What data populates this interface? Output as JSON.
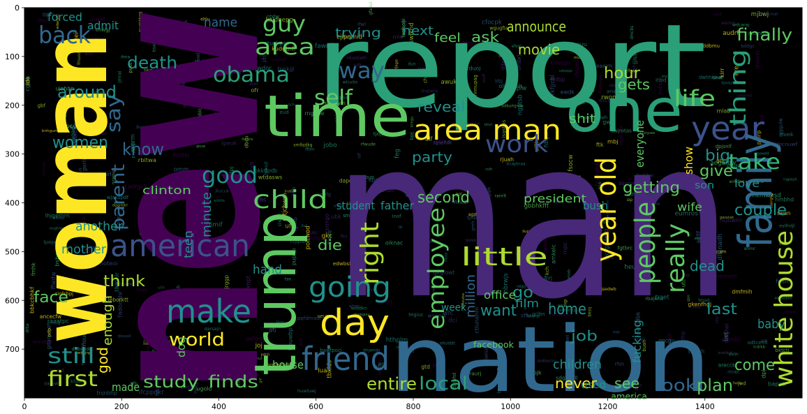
{
  "figure": {
    "type": "wordcloud-image-plot",
    "background": "#000000",
    "frame_color": "#000000",
    "x_ticks": [
      "0",
      "200",
      "400",
      "600",
      "800",
      "1000",
      "1200",
      "1400"
    ],
    "y_ticks": [
      "0",
      "100",
      "200",
      "300",
      "400",
      "500",
      "600",
      "700"
    ],
    "xlim": [
      0,
      1600
    ],
    "ylim": [
      800,
      0
    ],
    "palette": [
      "#440154",
      "#3b528b",
      "#21918c",
      "#2a9f78",
      "#5ec962",
      "#addc30",
      "#fde725",
      "#482878",
      "#31688e",
      "#35b779"
    ]
  },
  "words": [
    {
      "text": "new",
      "color": "#440154"
    },
    {
      "text": "report",
      "color": "#2a9f78"
    },
    {
      "text": "man",
      "color": "#482878"
    },
    {
      "text": "woman",
      "color": "#fde725"
    },
    {
      "text": "nation",
      "color": "#31688e"
    },
    {
      "text": "trump",
      "color": "#5ec962"
    },
    {
      "text": "time",
      "color": "#5ec962"
    },
    {
      "text": "one",
      "color": "#2a9f78"
    },
    {
      "text": "year",
      "color": "#3b528b"
    },
    {
      "text": "area man",
      "color": "#fde725"
    },
    {
      "text": "family",
      "color": "#31688e"
    },
    {
      "text": "white house",
      "color": "#addc30"
    },
    {
      "text": "day",
      "color": "#fde725"
    },
    {
      "text": "friend",
      "color": "#31688e"
    },
    {
      "text": "make",
      "color": "#21918c"
    },
    {
      "text": "going",
      "color": "#21918c"
    },
    {
      "text": "american",
      "color": "#3b528b"
    },
    {
      "text": "year old",
      "color": "#fde725"
    },
    {
      "text": "people",
      "color": "#5ec962"
    },
    {
      "text": "really",
      "color": "#5ec962"
    },
    {
      "text": "employee",
      "color": "#5ec962"
    },
    {
      "text": "right",
      "color": "#addc30"
    },
    {
      "text": "little",
      "color": "#addc30"
    },
    {
      "text": "child",
      "color": "#5ec962"
    },
    {
      "text": "good",
      "color": "#21918c"
    },
    {
      "text": "work",
      "color": "#3b528b"
    },
    {
      "text": "obama",
      "color": "#2a9f78"
    },
    {
      "text": "area",
      "color": "#5ec962"
    },
    {
      "text": "guy",
      "color": "#5ec962"
    },
    {
      "text": "back",
      "color": "#31688e"
    },
    {
      "text": "way",
      "color": "#31688e"
    },
    {
      "text": "life",
      "color": "#5ec962"
    },
    {
      "text": "thing",
      "color": "#2a9f78"
    },
    {
      "text": "take",
      "color": "#35b779"
    },
    {
      "text": "self",
      "color": "#5ec962"
    },
    {
      "text": "say",
      "color": "#31688e"
    },
    {
      "text": "still",
      "color": "#21918c"
    },
    {
      "text": "first",
      "color": "#addc30"
    },
    {
      "text": "world",
      "color": "#fde725"
    },
    {
      "text": "study",
      "color": "#5ec962"
    },
    {
      "text": "finds",
      "color": "#5ec962"
    },
    {
      "text": "local",
      "color": "#2a9f78"
    },
    {
      "text": "entire",
      "color": "#addc30"
    },
    {
      "text": "never",
      "color": "#fde725"
    },
    {
      "text": "see",
      "color": "#5ec962"
    },
    {
      "text": "look",
      "color": "#31688e"
    },
    {
      "text": "plan",
      "color": "#5ec962"
    },
    {
      "text": "come",
      "color": "#5ec962"
    },
    {
      "text": "know",
      "color": "#31688e"
    },
    {
      "text": "parent",
      "color": "#31688e"
    },
    {
      "text": "death",
      "color": "#21918c"
    },
    {
      "text": "around",
      "color": "#21918c"
    },
    {
      "text": "women",
      "color": "#21918c"
    },
    {
      "text": "finally",
      "color": "#5ec962"
    },
    {
      "text": "announce",
      "color": "#addc30"
    },
    {
      "text": "movie",
      "color": "#addc30"
    },
    {
      "text": "hour",
      "color": "#addc30"
    },
    {
      "text": "gets",
      "color": "#5ec962"
    },
    {
      "text": "party",
      "color": "#21918c"
    },
    {
      "text": "reveal",
      "color": "#21918c"
    },
    {
      "text": "give",
      "color": "#5ec962"
    },
    {
      "text": "big",
      "color": "#21918c"
    },
    {
      "text": "couple",
      "color": "#21918c"
    },
    {
      "text": "getting",
      "color": "#5ec962"
    },
    {
      "text": "second",
      "color": "#5ec962"
    },
    {
      "text": "clinton",
      "color": "#5ec962"
    },
    {
      "text": "think",
      "color": "#addc30"
    },
    {
      "text": "face",
      "color": "#5ec962"
    },
    {
      "text": "enough",
      "color": "#addc30"
    },
    {
      "text": "god",
      "color": "#fde725"
    },
    {
      "text": "made",
      "color": "#5ec962"
    },
    {
      "text": "mother",
      "color": "#21918c"
    },
    {
      "text": "another",
      "color": "#21918c"
    },
    {
      "text": "home",
      "color": "#21918c"
    },
    {
      "text": "want",
      "color": "#21918c"
    },
    {
      "text": "children",
      "color": "#21918c"
    },
    {
      "text": "dead",
      "color": "#21918c"
    },
    {
      "text": "last",
      "color": "#21918c"
    },
    {
      "text": "president",
      "color": "#5ec962"
    },
    {
      "text": "ask",
      "color": "#5ec962"
    },
    {
      "text": "next",
      "color": "#21918c"
    },
    {
      "text": "trying",
      "color": "#21918c"
    },
    {
      "text": "feel",
      "color": "#5ec962"
    },
    {
      "text": "name",
      "color": "#31688e"
    },
    {
      "text": "admit",
      "color": "#21918c"
    },
    {
      "text": "forced",
      "color": "#21918c"
    },
    {
      "text": "shit",
      "color": "#5ec962"
    },
    {
      "text": "everyone",
      "color": "#5ec962"
    },
    {
      "text": "show",
      "color": "#fde725"
    },
    {
      "text": "go",
      "color": "#21918c"
    },
    {
      "text": "office",
      "color": "#5ec962"
    },
    {
      "text": "house",
      "color": "#5ec962"
    },
    {
      "text": "dog",
      "color": "#5ec962"
    },
    {
      "text": "hand",
      "color": "#21918c"
    },
    {
      "text": "teen",
      "color": "#21918c"
    },
    {
      "text": "minute",
      "color": "#21918c"
    },
    {
      "text": "die",
      "color": "#5ec962"
    },
    {
      "text": "mom",
      "color": "#31688e"
    },
    {
      "text": "week",
      "color": "#21918c"
    },
    {
      "text": "wife",
      "color": "#5ec962"
    },
    {
      "text": "bush",
      "color": "#21918c"
    },
    {
      "text": "son",
      "color": "#21918c"
    },
    {
      "text": "love",
      "color": "#21918c"
    },
    {
      "text": "student",
      "color": "#21918c"
    },
    {
      "text": "father",
      "color": "#21918c"
    },
    {
      "text": "fucking",
      "color": "#21918c"
    },
    {
      "text": "baby",
      "color": "#21918c"
    },
    {
      "text": "million",
      "color": "#31688e"
    },
    {
      "text": "job",
      "color": "#21918c"
    },
    {
      "text": "film",
      "color": "#21918c"
    },
    {
      "text": "used",
      "color": "#21918c"
    },
    {
      "text": "facebook",
      "color": "#5ec962"
    },
    {
      "text": "america",
      "color": "#5ec962"
    }
  ]
}
